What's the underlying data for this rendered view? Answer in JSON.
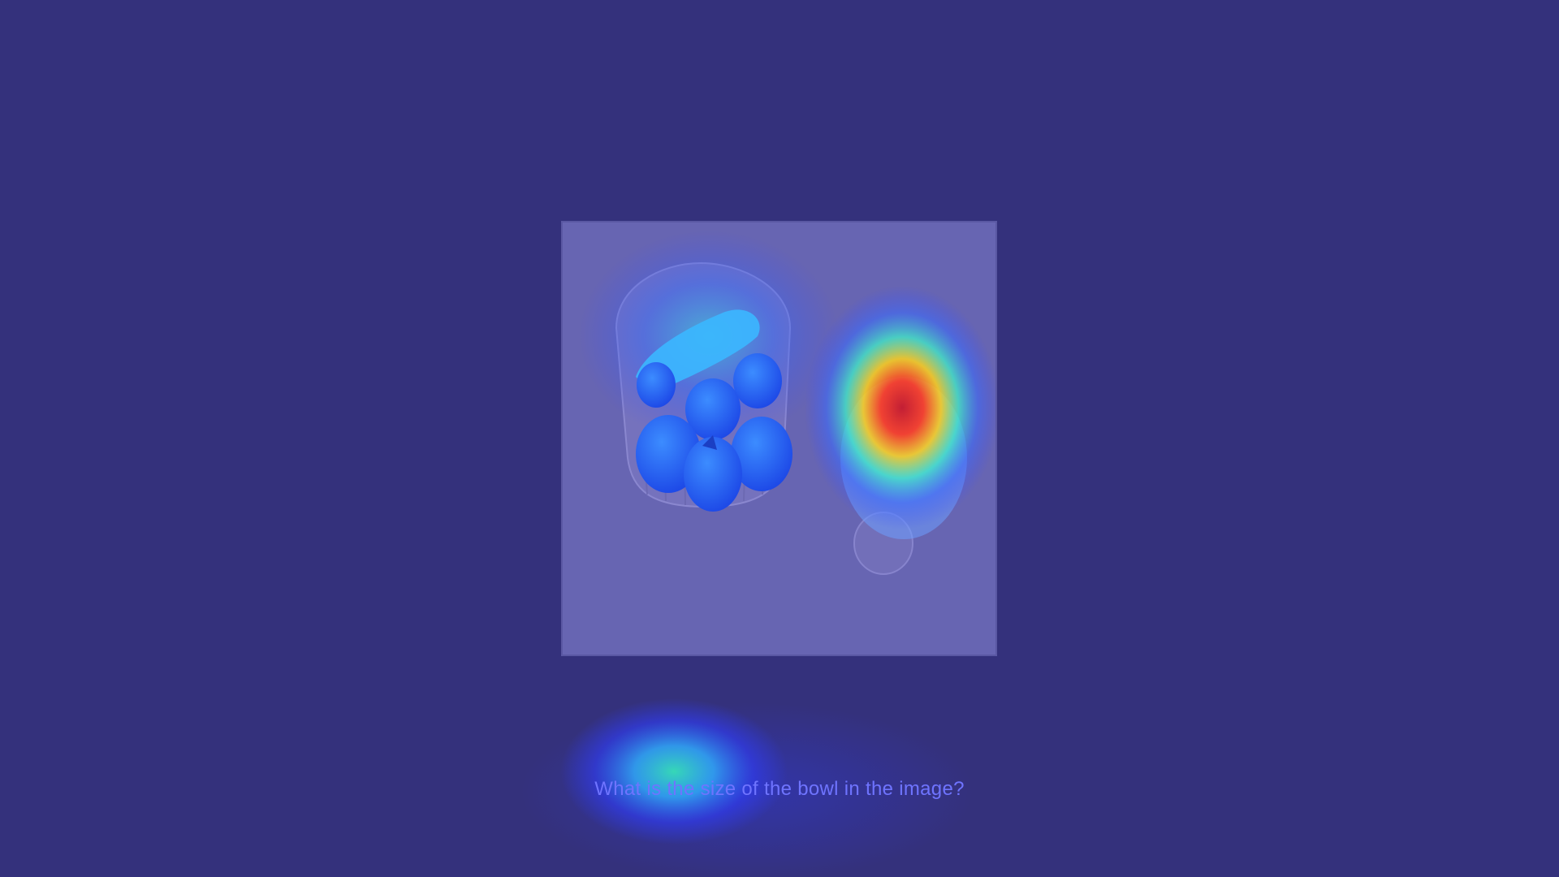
{
  "question": {
    "text": "What is the size of the bowl in the image?"
  },
  "colors": {
    "background": "#34317c",
    "panel": "#6765b2",
    "question_text": "#6f74ff",
    "heat_low": "#2f3dff",
    "heat_mid": "#36e0d8",
    "heat_high": "#e8332a"
  },
  "scene": {
    "objects": [
      "bowl-of-fruit",
      "egg"
    ],
    "heatmap_focus": "egg"
  }
}
